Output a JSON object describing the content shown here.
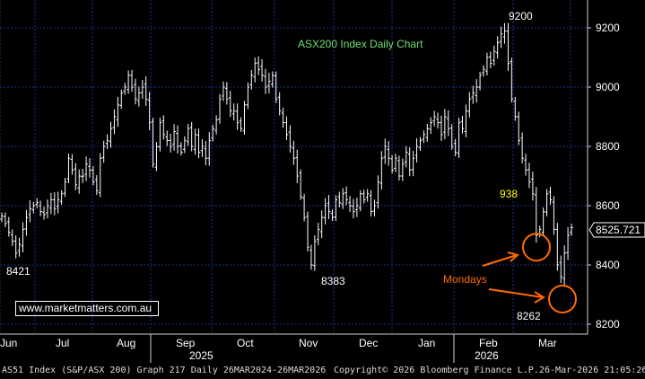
{
  "chart_data": {
    "type": "ohlc",
    "title": "ASX200 Index Daily Chart",
    "ylim": [
      8170,
      9270
    ],
    "y_ticks": [
      "9200",
      "9000",
      "8800",
      "8600",
      "8400",
      "8200"
    ],
    "x_ticks": [
      "Jun",
      "Jul",
      "Aug",
      "Sep",
      "Oct",
      "Nov",
      "Dec",
      "Jan",
      "Feb",
      "Mar"
    ],
    "year_labels": [
      "2025",
      "2026"
    ],
    "last_price": "8525.721",
    "series": [
      {
        "close": [
          8565,
          8540,
          8510,
          8480,
          8440,
          8470,
          8520,
          8560,
          8590,
          8600,
          8610,
          8580,
          8570,
          8600,
          8620,
          8590,
          8620,
          8640,
          8680,
          8760,
          8720,
          8670,
          8700,
          8700,
          8740,
          8720,
          8680,
          8650,
          8760,
          8800,
          8820,
          8860,
          8900,
          8940,
          8980,
          9000,
          9040,
          9000,
          8960,
          8980,
          9000,
          8960,
          8880,
          8740,
          8800,
          8880,
          8840,
          8820,
          8800,
          8850,
          8800,
          8780,
          8820,
          8860,
          8800,
          8840,
          8780,
          8800,
          8760,
          8820,
          8860,
          8890,
          8960,
          9000,
          8960,
          8920,
          8920,
          8880,
          8860,
          8940,
          9000,
          9040,
          9080,
          9060,
          9040,
          9000,
          9020,
          9040,
          8960,
          8920,
          8880,
          8840,
          8800,
          8760,
          8700,
          8630,
          8560,
          8460,
          8400,
          8480,
          8520,
          8560,
          8600,
          8580,
          8560,
          8620,
          8610,
          8640,
          8620,
          8600,
          8580,
          8600,
          8640,
          8620,
          8640,
          8580,
          8600,
          8680,
          8760,
          8800,
          8760,
          8720,
          8760,
          8700,
          8740,
          8780,
          8720,
          8760,
          8800,
          8820,
          8840,
          8860,
          8880,
          8900,
          8880,
          8840,
          8900,
          8860,
          8800,
          8780,
          8880,
          8860,
          8920,
          8960,
          8980,
          9000,
          9040,
          9060,
          9100,
          9080,
          9120,
          9150,
          9180,
          9190,
          9080,
          8960,
          8900,
          8820,
          8760,
          8720,
          8680,
          8640,
          8500,
          8520,
          8580,
          8640,
          8620,
          8520,
          8400,
          8360,
          8440,
          8500,
          8525.721
        ]
      },
      {
        "name": "Mondays",
        "values": [
          8460,
          8285
        ]
      }
    ],
    "annotations": {
      "high_label": "9200",
      "low_labels": [
        "8421",
        "8383",
        "8262"
      ],
      "level_label": "938",
      "mondays_label": "Mondays"
    }
  },
  "watermark": "www.marketmatters.com.au",
  "footer": {
    "left": "AS51 Index (S&P/ASX 200) Graph 217 Daily 26MAR2024-26MAR2026",
    "center": "Copyright© 2026 Bloomberg Finance L.P.",
    "right": "26-Mar-2026 21:05:26"
  },
  "colors": {
    "background": "#000000",
    "grid": "#1e2f8a",
    "bars": "#ffffff",
    "title": "#6ee06e",
    "annotation_orange": "#ff6a00",
    "level_label": "#ffff00"
  }
}
